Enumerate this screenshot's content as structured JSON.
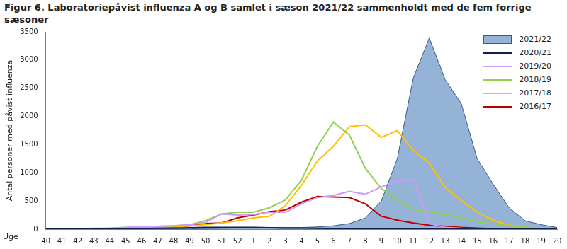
{
  "chart_data": {
    "type": "line",
    "title": "Figur 6. Laboratoriepåvist influenza A og B samlet i sæson 2021/22 sammenholdt med de fem forrige sæsoner",
    "xlabel": "Uge",
    "ylabel": "Antal personer med påvist influenza",
    "categories": [
      40,
      41,
      42,
      43,
      44,
      45,
      46,
      47,
      48,
      49,
      50,
      51,
      52,
      1,
      2,
      3,
      4,
      5,
      6,
      7,
      8,
      9,
      10,
      11,
      12,
      13,
      14,
      15,
      16,
      17,
      18,
      19,
      20
    ],
    "series": [
      {
        "name": "2021/22",
        "type": "area",
        "color": "#95b3d7",
        "values": [
          0,
          0,
          0,
          0,
          0,
          0,
          0,
          5,
          5,
          5,
          10,
          15,
          20,
          25,
          30,
          30,
          30,
          40,
          60,
          100,
          200,
          500,
          1250,
          2680,
          3390,
          2650,
          2230,
          1250,
          800,
          380,
          150,
          80,
          30
        ]
      },
      {
        "name": "2020/21",
        "color": "#0d1f4e",
        "values": [
          0,
          0,
          0,
          0,
          0,
          5,
          10,
          15,
          20,
          25,
          30,
          30,
          30,
          30,
          25,
          20,
          20,
          15,
          10,
          10,
          5,
          5,
          5,
          5,
          5,
          5,
          5,
          5,
          5,
          5,
          5,
          5,
          5
        ]
      },
      {
        "name": "2019/20",
        "color": "#cc99ff",
        "values": [
          10,
          10,
          10,
          15,
          20,
          30,
          50,
          50,
          60,
          80,
          120,
          270,
          250,
          260,
          300,
          300,
          450,
          560,
          600,
          670,
          620,
          750,
          860,
          880,
          100,
          30,
          15,
          10,
          10,
          5,
          5,
          5,
          5
        ]
      },
      {
        "name": "2018/19",
        "color": "#92d050",
        "values": [
          5,
          5,
          5,
          10,
          15,
          30,
          40,
          50,
          60,
          80,
          150,
          270,
          300,
          300,
          380,
          520,
          870,
          1470,
          1900,
          1670,
          1080,
          720,
          520,
          350,
          310,
          260,
          200,
          130,
          100,
          60,
          30,
          20,
          10
        ]
      },
      {
        "name": "2017/18",
        "color": "#ffc000",
        "values": [
          5,
          5,
          5,
          10,
          10,
          15,
          20,
          30,
          40,
          60,
          80,
          110,
          150,
          200,
          230,
          420,
          780,
          1210,
          1470,
          1820,
          1850,
          1630,
          1750,
          1400,
          1170,
          740,
          510,
          300,
          160,
          70,
          30,
          15,
          10
        ]
      },
      {
        "name": "2016/17",
        "color": "#c00000",
        "values": [
          5,
          5,
          5,
          10,
          10,
          10,
          15,
          25,
          40,
          60,
          100,
          110,
          200,
          250,
          310,
          340,
          480,
          580,
          570,
          560,
          450,
          230,
          160,
          110,
          70,
          50,
          30,
          20,
          10,
          5,
          5,
          5,
          5
        ]
      }
    ],
    "ylim": [
      0,
      3500
    ],
    "yticks": [
      0,
      500,
      1000,
      1500,
      2000,
      2500,
      3000,
      3500
    ],
    "grid": false,
    "legend": "upper right"
  }
}
